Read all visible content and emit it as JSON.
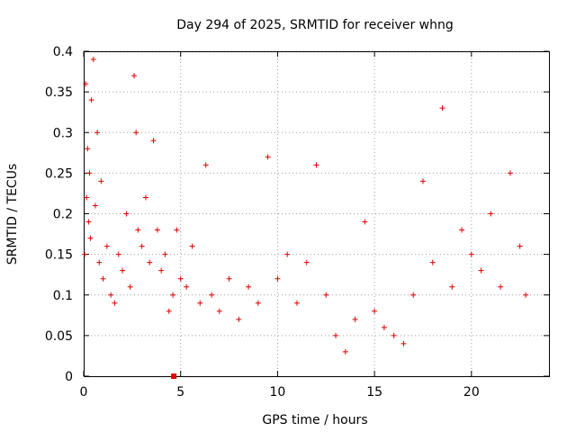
{
  "chart_data": {
    "type": "scatter",
    "title": "Day 294 of 2025, SRMTID for receiver whng",
    "xlabel": "GPS time / hours",
    "ylabel": "SRMTID / TECUs",
    "xlim": [
      0,
      24
    ],
    "ylim": [
      0,
      0.4
    ],
    "xticks": [
      0,
      5,
      10,
      15,
      20
    ],
    "xtick_labels": [
      "0",
      "5",
      "10",
      "15",
      "20"
    ],
    "yticks": [
      0,
      0.05,
      0.1,
      0.15,
      0.2,
      0.25,
      0.3,
      0.35,
      0.4
    ],
    "ytick_labels": [
      "0",
      "0.05",
      "0.1",
      "0.15",
      "0.2",
      "0.25",
      "0.3",
      "0.35",
      "0.4"
    ],
    "grid": true,
    "marker_color": "#e00000",
    "series": [
      {
        "name": "SRMTID",
        "marker": "plus",
        "x": [
          0.05,
          0.1,
          0.15,
          0.2,
          0.25,
          0.3,
          0.35,
          0.4,
          0.5,
          0.6,
          0.7,
          0.8,
          0.9,
          1.0,
          1.2,
          1.4,
          1.6,
          1.8,
          2.0,
          2.2,
          2.4,
          2.6,
          2.7,
          2.8,
          3.0,
          3.2,
          3.4,
          3.6,
          3.8,
          4.0,
          4.2,
          4.4,
          4.6,
          4.8,
          5.0,
          5.3,
          5.6,
          6.0,
          6.3,
          6.6,
          7.0,
          7.5,
          8.0,
          8.5,
          9.0,
          9.5,
          10.0,
          10.5,
          11.0,
          11.5,
          12.0,
          12.5,
          13.0,
          13.5,
          14.0,
          14.5,
          15.0,
          15.5,
          16.0,
          16.5,
          17.0,
          17.5,
          18.0,
          18.5,
          19.0,
          19.5,
          20.0,
          20.5,
          21.0,
          21.5,
          22.0,
          22.5,
          22.8
        ],
        "y": [
          0.15,
          0.36,
          0.22,
          0.28,
          0.19,
          0.25,
          0.17,
          0.34,
          0.39,
          0.21,
          0.3,
          0.14,
          0.24,
          0.12,
          0.16,
          0.1,
          0.09,
          0.15,
          0.13,
          0.2,
          0.11,
          0.37,
          0.3,
          0.18,
          0.16,
          0.22,
          0.14,
          0.29,
          0.18,
          0.13,
          0.15,
          0.08,
          0.1,
          0.18,
          0.12,
          0.11,
          0.16,
          0.09,
          0.26,
          0.1,
          0.08,
          0.12,
          0.07,
          0.11,
          0.09,
          0.27,
          0.12,
          0.15,
          0.09,
          0.14,
          0.26,
          0.1,
          0.05,
          0.03,
          0.07,
          0.19,
          0.08,
          0.06,
          0.05,
          0.04,
          0.1,
          0.24,
          0.14,
          0.33,
          0.11,
          0.18,
          0.15,
          0.13,
          0.2,
          0.11,
          0.25,
          0.16,
          0.1
        ]
      }
    ],
    "annotations": [
      {
        "x": 4.65,
        "y": 0,
        "marker": "square"
      }
    ]
  }
}
